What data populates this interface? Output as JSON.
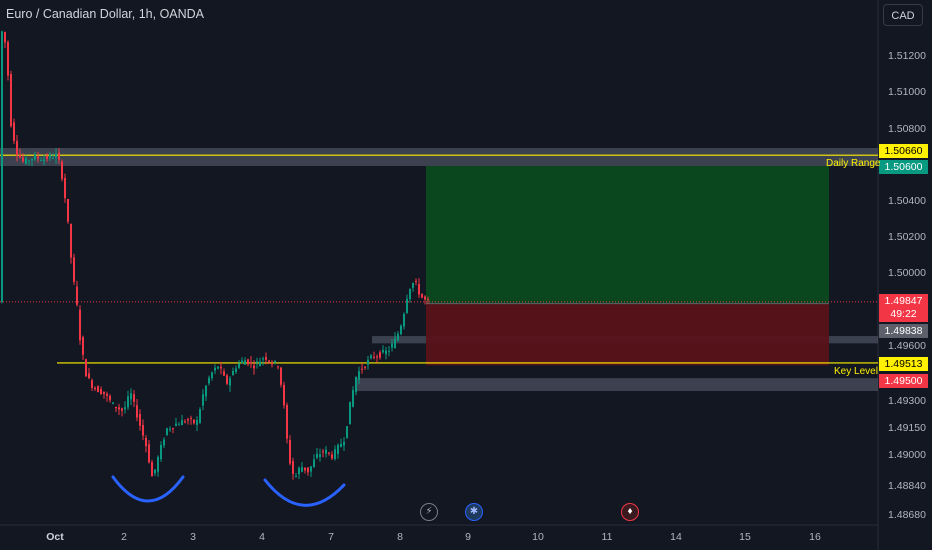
{
  "header": {
    "title": "Euro / Canadian Dollar, 1h, OANDA",
    "currency": "CAD"
  },
  "chart_data": {
    "type": "candlestick",
    "title": "Euro / Canadian Dollar, 1h, OANDA",
    "y_ticks": [
      "1.51200",
      "1.51000",
      "1.50800",
      "1.50400",
      "1.50200",
      "1.50000",
      "1.49600",
      "1.49300",
      "1.49150",
      "1.49000",
      "1.48840",
      "1.48680"
    ],
    "x_ticks": [
      {
        "label": "Oct",
        "bold": true
      },
      {
        "label": "2"
      },
      {
        "label": "3"
      },
      {
        "label": "4"
      },
      {
        "label": "7"
      },
      {
        "label": "8"
      },
      {
        "label": "9"
      },
      {
        "label": "10"
      },
      {
        "label": "11"
      },
      {
        "label": "14"
      },
      {
        "label": "15"
      },
      {
        "label": "16"
      }
    ],
    "price_tags": [
      {
        "label": "1.50660",
        "bg": "#fff100",
        "fg": "#000000"
      },
      {
        "label": "1.50600",
        "bg": "#089981",
        "fg": "#ffffff"
      },
      {
        "label": "1.49847",
        "sub": "49:22",
        "bg": "#f23645",
        "fg": "#ffffff"
      },
      {
        "label": "1.49838",
        "bg": "#5d606b",
        "fg": "#ffffff"
      },
      {
        "label": "1.49513",
        "bg": "#fff100",
        "fg": "#000000"
      },
      {
        "label": "1.49500",
        "bg": "#f23645",
        "fg": "#ffffff"
      }
    ],
    "annotations": {
      "daily_range": "Daily Range",
      "key_level": "Key Level"
    },
    "levels": {
      "daily_range_line": 1.5066,
      "key_level_line": 1.49513,
      "current_price": 1.49847
    },
    "position": {
      "type": "long",
      "entry": 1.49838,
      "target": 1.506,
      "stop": 1.495
    },
    "colors": {
      "up": "#089981",
      "down": "#f23645",
      "target_zone": "#0b4a1f",
      "stop_zone": "#5a1219",
      "level_line": "#fff100",
      "pattern_curve": "#2962ff"
    },
    "pattern": "double bottom"
  }
}
